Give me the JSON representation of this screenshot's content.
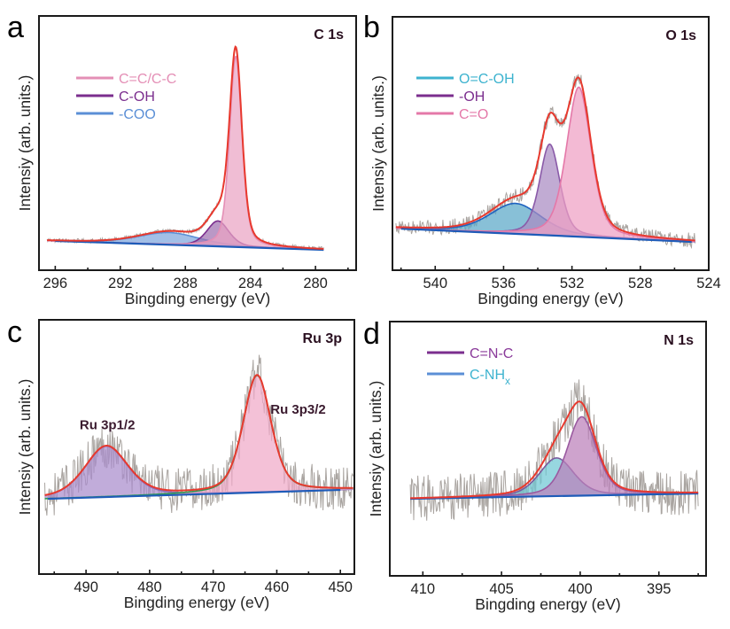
{
  "chart_data": [
    {
      "panel": "a",
      "type": "line",
      "title": "C 1s",
      "xlabel": "Bingding energy (eV)",
      "ylabel": "Intensiy (arb. units.)",
      "xlim": [
        297.0,
        277.5
      ],
      "ylim": [
        0,
        100
      ],
      "x_ticks": [
        296,
        292,
        288,
        284,
        280
      ],
      "x_minor_step": 2,
      "grid": false,
      "legend_position": "top-left",
      "baseline": {
        "x": [
          296.0,
          279.5
        ],
        "y": [
          11.5,
          8.0
        ]
      },
      "data_range": [
        296.5,
        279.5
      ],
      "noise_amplitude": 0.8,
      "components": [
        {
          "name": "C=C/C-C",
          "center": 284.9,
          "height": 75.0,
          "fwhm": 0.9,
          "color": "#e48fb6",
          "fill": "#eaa3c4",
          "legend": true
        },
        {
          "name": "C-OH",
          "center": 286.0,
          "height": 10.0,
          "fwhm": 1.6,
          "color": "#7b2e8e",
          "fill": "#a070b0",
          "legend": true
        },
        {
          "name": "-COO",
          "center": 289.0,
          "height": 4.8,
          "fwhm": 4.5,
          "color": "#5b8fd6",
          "fill": "#7ea6de",
          "legend": true
        }
      ],
      "envelope_color": "#e8392e",
      "raw_color": "#a9a4a0",
      "baseline_color": "#1e5bb8"
    },
    {
      "panel": "b",
      "type": "line",
      "title": "O 1s",
      "xlabel": "Bingding energy (eV)",
      "ylabel": "Intensiy (arb. units.)",
      "xlim": [
        542.5,
        524.0
      ],
      "ylim": [
        0,
        100
      ],
      "x_ticks": [
        540,
        536,
        532,
        528,
        524
      ],
      "x_minor_step": 2,
      "grid": false,
      "legend_position": "top-left",
      "baseline": {
        "x": [
          542.0,
          525.0
        ],
        "y": [
          16.4,
          11.2
        ]
      },
      "data_range": [
        542.3,
        524.8
      ],
      "noise_amplitude": 3.0,
      "components": [
        {
          "name": "O=C-OH",
          "center": 535.3,
          "height": 12.0,
          "fwhm": 3.6,
          "color": "#1f62c0",
          "fill": "#5aa8c8",
          "legend_color": "#3db3cf",
          "legend": true
        },
        {
          "name": "-OH",
          "center": 533.3,
          "height": 36.0,
          "fwhm": 1.4,
          "color": "#8a5aa8",
          "fill": "#a98ac2",
          "legend_color": "#7b2e8e",
          "legend": true
        },
        {
          "name": "C=O",
          "center": 531.6,
          "height": 59.0,
          "fwhm": 1.7,
          "color": "#e478a8",
          "fill": "#ee9fc3",
          "legend": true
        }
      ],
      "envelope_color": "#e8392e",
      "raw_color": "#a9a4a0",
      "baseline_color": "#1e5bb8"
    },
    {
      "panel": "c",
      "type": "line",
      "title": "Ru 3p",
      "xlabel": "Bingding energy (eV)",
      "ylabel": "Intensiy (arb. units.)",
      "xlim": [
        497.4,
        447.8
      ],
      "ylim": [
        0,
        100
      ],
      "x_ticks": [
        490,
        480,
        470,
        460,
        450
      ],
      "x_minor_step": 5,
      "grid": false,
      "baseline": {
        "x": [
          496.0,
          450.0
        ],
        "y": [
          29.6,
          33.1
        ]
      },
      "data_range": [
        496.5,
        448.0
      ],
      "noise_amplitude": 9.0,
      "components": [
        {
          "name": "Ru 3p1/2",
          "center": 486.8,
          "height": 20.0,
          "fwhm": 8.0,
          "color": "#8c6ab8",
          "fill": "#a98ccc",
          "legend": false
        },
        {
          "name": "Ru 3p3/2",
          "center": 463.1,
          "height": 46.0,
          "fwhm": 5.2,
          "color": "#2e9a52",
          "fill": "#f0a9c8",
          "legend": false
        }
      ],
      "annotations": [
        {
          "text": "Ru 3p1/2",
          "x": 491.0,
          "y": 57
        },
        {
          "text": "Ru 3p3/2",
          "x": 461.0,
          "y": 63
        }
      ],
      "envelope_color": "#e8392e",
      "raw_color": "#a9a4a0",
      "baseline_color": "#1e5bb8"
    },
    {
      "panel": "d",
      "type": "line",
      "title": "N 1s",
      "xlabel": "Bingding energy (eV)",
      "ylabel": "Intensiy (arb. units.)",
      "xlim": [
        412.1,
        392.0
      ],
      "ylim": [
        0,
        100
      ],
      "x_ticks": [
        410,
        405,
        400,
        395
      ],
      "x_minor_step": 2.5,
      "grid": false,
      "legend_position": "top-left",
      "baseline": {
        "x": [
          410.8,
          392.5
        ],
        "y": [
          30.3,
          32.4
        ]
      },
      "data_range": [
        410.8,
        392.5
      ],
      "noise_amplitude": 9.0,
      "components": [
        {
          "name": "C-NHx",
          "center": 401.5,
          "height": 15.0,
          "fwhm": 2.6,
          "color": "#7a5a9e",
          "fill": "#6fc8d4",
          "legend": false
        },
        {
          "name": "C=N-C",
          "center": 399.9,
          "height": 31.0,
          "fwhm": 2.2,
          "color": "#9a5aa0",
          "fill": "#bb7fba",
          "legend": false
        }
      ],
      "legend": [
        {
          "name": "C=N-C",
          "line_color": "#7b2e8e",
          "text_color": "#8a3a9a"
        },
        {
          "name": "C-NH",
          "sub": "x",
          "line_color": "#5b8fd6",
          "text_color": "#3db3cf"
        }
      ],
      "envelope_color": "#e8392e",
      "raw_color": "#a9a4a0",
      "baseline_color": "#1e5bb8"
    }
  ],
  "panels": {
    "a": {
      "letter": "a"
    },
    "b": {
      "letter": "b"
    },
    "c": {
      "letter": "c"
    },
    "d": {
      "letter": "d"
    }
  }
}
